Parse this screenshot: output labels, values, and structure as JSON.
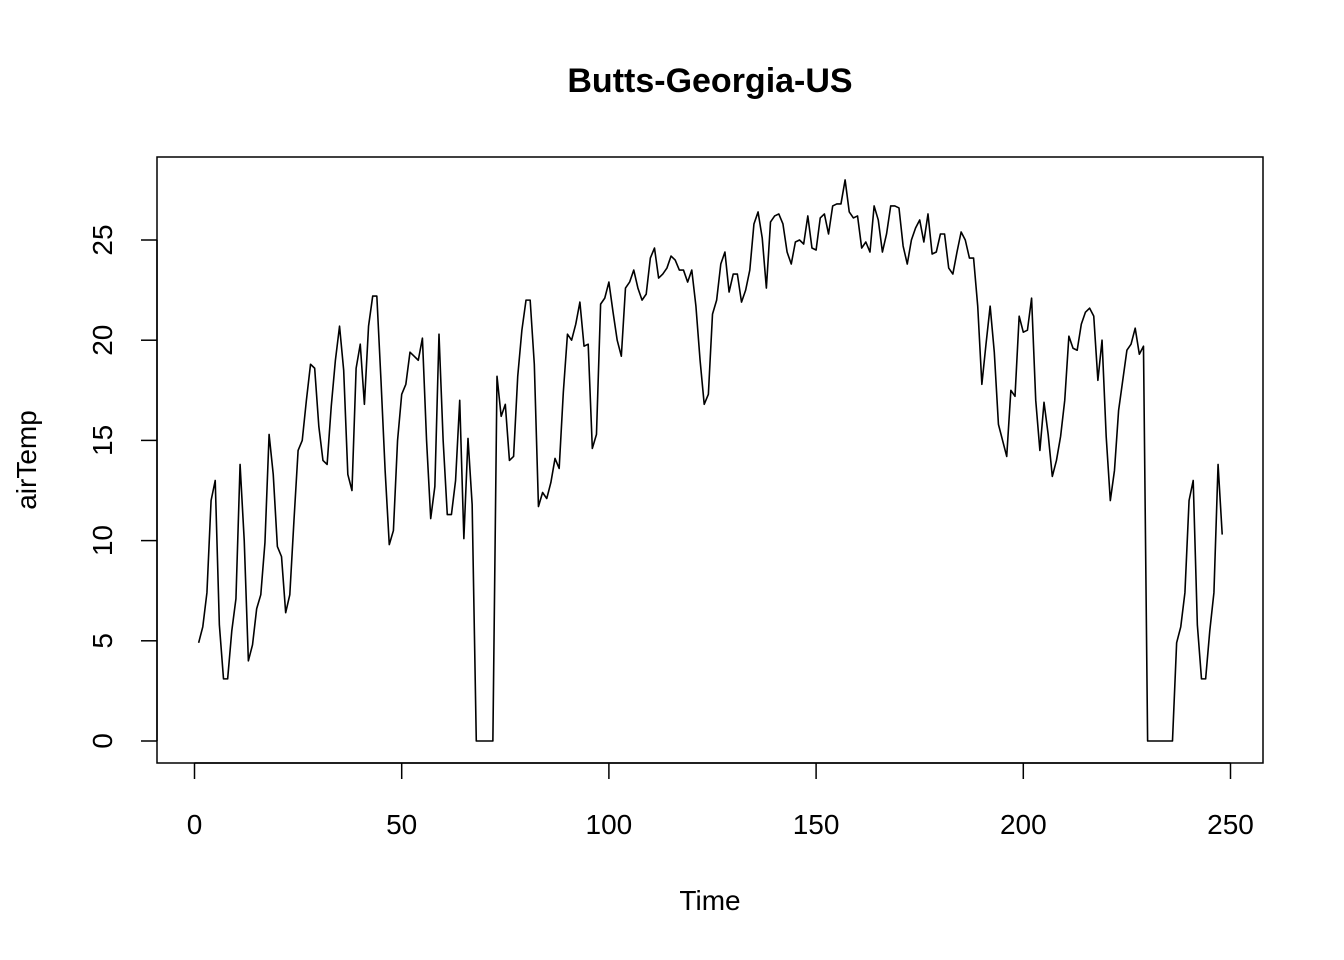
{
  "chart_data": {
    "type": "line",
    "title": "Butts-Georgia-US",
    "xlabel": "Time",
    "ylabel": "airTemp",
    "xlim": [
      0,
      250
    ],
    "ylim": [
      0,
      28
    ],
    "x_ticks": [
      0,
      50,
      100,
      150,
      200,
      250
    ],
    "y_ticks": [
      0,
      5,
      10,
      15,
      20,
      25
    ],
    "x_tick_labels": [
      "0",
      "50",
      "100",
      "150",
      "200",
      "250"
    ],
    "y_tick_labels": [
      "0",
      "5",
      "10",
      "15",
      "20",
      "25"
    ],
    "grid": false,
    "series": [
      {
        "color": "#000000",
        "x_start": 1,
        "values": [
          4.9,
          5.7,
          7.4,
          12.0,
          13.0,
          5.8,
          3.1,
          3.1,
          5.5,
          7.1,
          13.8,
          10.0,
          4.0,
          4.8,
          6.6,
          7.3,
          9.9,
          15.3,
          13.3,
          9.7,
          9.2,
          6.4,
          7.3,
          11.0,
          14.5,
          15.0,
          17.0,
          18.8,
          18.6,
          15.7,
          14.0,
          13.8,
          16.7,
          19.0,
          20.7,
          18.5,
          13.3,
          12.5,
          18.6,
          19.8,
          16.8,
          20.7,
          22.2,
          22.2,
          18.0,
          13.5,
          9.8,
          10.5,
          15.0,
          17.3,
          17.8,
          19.4,
          19.2,
          19.0,
          20.1,
          15.0,
          11.1,
          12.7,
          20.3,
          15.0,
          11.3,
          11.3,
          13.0,
          17.0,
          10.1,
          15.1,
          11.8,
          0.0,
          0.0,
          0.0,
          0.0,
          0.0,
          18.2,
          16.2,
          16.8,
          14.0,
          14.2,
          18.2,
          20.5,
          22.0,
          22.0,
          18.8,
          11.7,
          12.4,
          12.1,
          12.9,
          14.1,
          13.6,
          17.4,
          20.3,
          20.0,
          20.8,
          21.9,
          19.7,
          19.8,
          14.6,
          15.3,
          21.8,
          22.1,
          22.9,
          21.4,
          20.0,
          19.2,
          22.6,
          22.9,
          23.5,
          22.6,
          22.0,
          22.3,
          24.1,
          24.6,
          23.1,
          23.3,
          23.6,
          24.2,
          24.0,
          23.5,
          23.5,
          22.9,
          23.5,
          21.7,
          19.0,
          16.8,
          17.3,
          21.3,
          22.0,
          23.8,
          24.4,
          22.4,
          23.3,
          23.3,
          21.9,
          22.5,
          23.5,
          25.8,
          26.4,
          25.1,
          22.6,
          25.9,
          26.2,
          26.3,
          25.8,
          24.4,
          23.8,
          24.9,
          25.0,
          24.8,
          26.2,
          24.6,
          24.5,
          26.1,
          26.3,
          25.3,
          26.7,
          26.8,
          26.8,
          28.0,
          26.4,
          26.1,
          26.2,
          24.6,
          24.9,
          24.4,
          26.7,
          26.0,
          24.4,
          25.3,
          26.7,
          26.7,
          26.6,
          24.7,
          23.8,
          25.0,
          25.6,
          26.0,
          24.9,
          26.3,
          24.3,
          24.4,
          25.3,
          25.3,
          23.6,
          23.3,
          24.4,
          25.4,
          25.0,
          24.1,
          24.1,
          21.7,
          17.8,
          19.8,
          21.7,
          19.4,
          15.8,
          15.0,
          14.2,
          17.5,
          17.2,
          21.2,
          20.4,
          20.5,
          22.1,
          17.0,
          14.5,
          16.9,
          15.3,
          13.2,
          14.0,
          15.2,
          17.0,
          20.2,
          19.6,
          19.5,
          20.8,
          21.4,
          21.6,
          21.2,
          18.0,
          20.0,
          15.2,
          12.0,
          13.5,
          16.5,
          18.0,
          19.5,
          19.8,
          20.6,
          19.3,
          19.7,
          0.0,
          0.0,
          0.0,
          0.0,
          0.0,
          0.0,
          0.0,
          4.9,
          5.7,
          7.4,
          12.0,
          13.0,
          5.8,
          3.1,
          3.1,
          5.5,
          7.4,
          13.8,
          10.3
        ]
      }
    ]
  }
}
